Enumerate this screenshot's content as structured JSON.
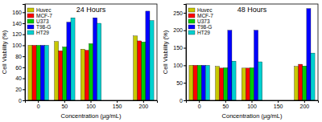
{
  "chart_data": [
    {
      "type": "bar",
      "title": "24 Hours",
      "x_label": "Concentration (µg/mL)",
      "y_label": "Cell Viability (%)",
      "categories": [
        "0",
        "50",
        "100",
        "150",
        "200"
      ],
      "series": [
        {
          "name": "Huvec",
          "color": "#c8c800",
          "values": [
            100,
            107,
            93,
            null,
            117
          ]
        },
        {
          "name": "MCF-7",
          "color": "#ff0000",
          "values": [
            100,
            90,
            91,
            null,
            108
          ]
        },
        {
          "name": "U373",
          "color": "#00cc00",
          "values": [
            100,
            97,
            103,
            null,
            106
          ]
        },
        {
          "name": "T98-G",
          "color": "#0000ff",
          "values": [
            100,
            142,
            150,
            null,
            162
          ]
        },
        {
          "name": "HT29",
          "color": "#00d0d0",
          "values": [
            100,
            150,
            140,
            null,
            145
          ]
        }
      ],
      "ylim": [
        0,
        175
      ],
      "yticks": [
        0,
        20,
        40,
        60,
        80,
        100,
        120,
        140,
        160
      ],
      "legend": "upper left"
    },
    {
      "type": "bar",
      "title": "48 Hours",
      "x_label": "Concentration (µg/mL)",
      "y_label": "Cell Viability (%)",
      "categories": [
        "0",
        "50",
        "100",
        "150",
        "200"
      ],
      "series": [
        {
          "name": "Huvec",
          "color": "#c8c800",
          "values": [
            100,
            97,
            92,
            null,
            97
          ]
        },
        {
          "name": "MCF-7",
          "color": "#ff0000",
          "values": [
            100,
            92,
            92,
            null,
            103
          ]
        },
        {
          "name": "U373",
          "color": "#00cc00",
          "values": [
            100,
            93,
            93,
            null,
            98
          ]
        },
        {
          "name": "T98-G",
          "color": "#0000ff",
          "values": [
            100,
            200,
            200,
            null,
            262
          ]
        },
        {
          "name": "HT29",
          "color": "#00d0d0",
          "values": [
            100,
            112,
            110,
            null,
            135
          ]
        }
      ],
      "ylim": [
        0,
        275
      ],
      "yticks": [
        0,
        50,
        100,
        150,
        200,
        250
      ],
      "legend": "upper left"
    }
  ]
}
